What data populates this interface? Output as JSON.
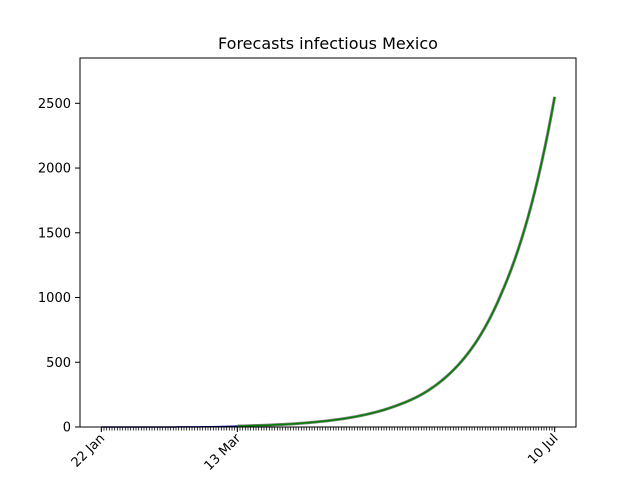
{
  "chart_data": {
    "type": "line",
    "title": "Forecasts infectious Mexico",
    "xlabel": "",
    "ylabel": "",
    "x_ticks": [
      {
        "label": "22 Jan",
        "day": 0
      },
      {
        "label": "13 Mar",
        "day": 51
      },
      {
        "label": "10 Jul",
        "day": 170
      }
    ],
    "x_range_days": [
      -8,
      178
    ],
    "ylim": [
      0,
      2850
    ],
    "y_ticks": [
      0,
      500,
      1000,
      1500,
      2000,
      2500
    ],
    "grid": false,
    "series": [
      {
        "color": "#00008b",
        "role": "observed",
        "points": [
          [
            0,
            0
          ],
          [
            10,
            0
          ],
          [
            20,
            0.2
          ],
          [
            30,
            0.6
          ],
          [
            38,
            1.5
          ],
          [
            44,
            3
          ],
          [
            48,
            5
          ],
          [
            51,
            7
          ]
        ]
      },
      {
        "color": "#808080",
        "role": "forecast-band",
        "points": [
          [
            51,
            7
          ],
          [
            60,
            13
          ],
          [
            70,
            22
          ],
          [
            80,
            38
          ],
          [
            90,
            62
          ],
          [
            100,
            100
          ],
          [
            110,
            160
          ],
          [
            120,
            250
          ],
          [
            130,
            400
          ],
          [
            140,
            640
          ],
          [
            150,
            1030
          ],
          [
            160,
            1620
          ],
          [
            170,
            2550
          ]
        ]
      },
      {
        "color": "#008000",
        "role": "forecast",
        "points": [
          [
            51,
            7
          ],
          [
            60,
            13
          ],
          [
            70,
            22
          ],
          [
            80,
            38
          ],
          [
            90,
            62
          ],
          [
            100,
            100
          ],
          [
            110,
            160
          ],
          [
            120,
            250
          ],
          [
            130,
            400
          ],
          [
            140,
            640
          ],
          [
            150,
            1030
          ],
          [
            160,
            1620
          ],
          [
            170,
            2550
          ]
        ]
      }
    ]
  }
}
